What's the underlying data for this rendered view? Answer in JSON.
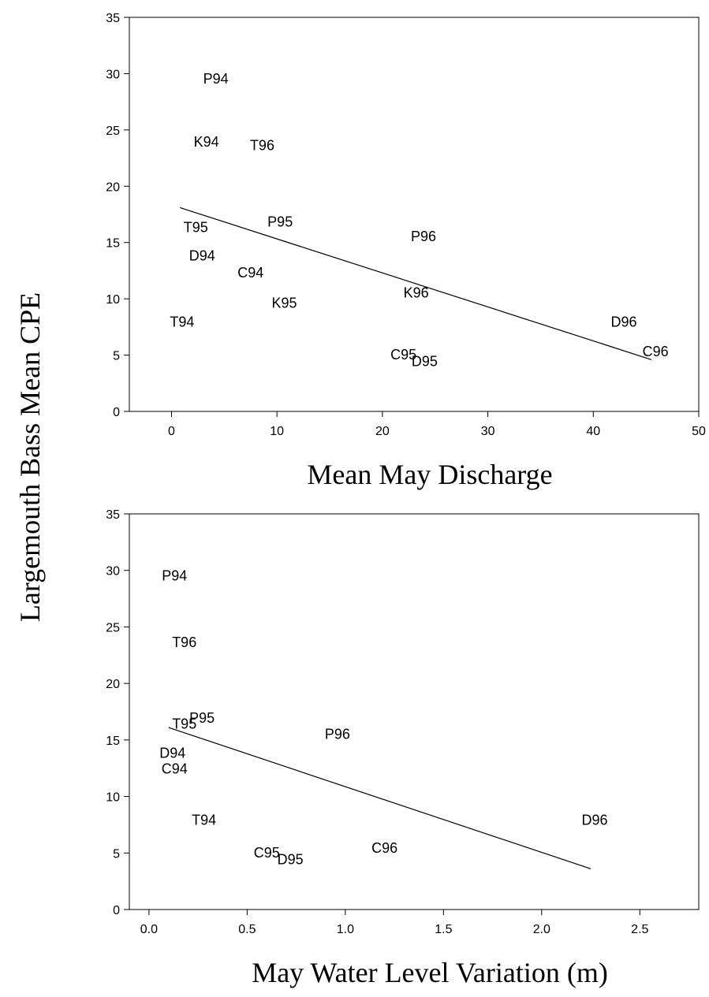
{
  "figure": {
    "ylabel": "Largemouth Bass Mean CPE"
  },
  "chart_data": [
    {
      "type": "scatter",
      "xlabel": "Mean May Discharge",
      "ylabel": "Largemouth Bass Mean CPE",
      "xlim": [
        -4,
        50
      ],
      "ylim": [
        0,
        35
      ],
      "xticks": [
        0,
        10,
        20,
        30,
        40,
        50
      ],
      "yticks": [
        0,
        5,
        10,
        15,
        20,
        25,
        30,
        35
      ],
      "xtick_decimals": 0,
      "grid": false,
      "points": [
        {
          "label": "P94",
          "x": 4.2,
          "y": 29.6
        },
        {
          "label": "K94",
          "x": 3.3,
          "y": 24.0
        },
        {
          "label": "T96",
          "x": 8.6,
          "y": 23.7
        },
        {
          "label": "T95",
          "x": 2.3,
          "y": 16.4
        },
        {
          "label": "P95",
          "x": 10.3,
          "y": 16.9
        },
        {
          "label": "P96",
          "x": 23.9,
          "y": 15.6
        },
        {
          "label": "D94",
          "x": 2.9,
          "y": 13.9
        },
        {
          "label": "C94",
          "x": 7.5,
          "y": 12.4
        },
        {
          "label": "K95",
          "x": 10.7,
          "y": 9.7
        },
        {
          "label": "K96",
          "x": 23.2,
          "y": 10.6
        },
        {
          "label": "T94",
          "x": 1.0,
          "y": 8.0
        },
        {
          "label": "C95",
          "x": 22.0,
          "y": 5.1
        },
        {
          "label": "D95",
          "x": 24.0,
          "y": 4.5
        },
        {
          "label": "D96",
          "x": 42.9,
          "y": 8.0
        },
        {
          "label": "C96",
          "x": 45.9,
          "y": 5.4
        }
      ],
      "regression": {
        "x": [
          0.8,
          45.5
        ],
        "y": [
          18.1,
          4.6
        ]
      }
    },
    {
      "type": "scatter",
      "xlabel": "May Water Level Variation (m)",
      "ylabel": "Largemouth Bass Mean CPE",
      "xlim": [
        -0.1,
        2.8
      ],
      "ylim": [
        0,
        35
      ],
      "xticks": [
        0.0,
        0.5,
        1.0,
        1.5,
        2.0,
        2.5
      ],
      "yticks": [
        0,
        5,
        10,
        15,
        20,
        25,
        30,
        35
      ],
      "xtick_decimals": 1,
      "grid": false,
      "points": [
        {
          "label": "P94",
          "x": 0.13,
          "y": 29.6
        },
        {
          "label": "T96",
          "x": 0.18,
          "y": 23.7
        },
        {
          "label": "T95",
          "x": 0.18,
          "y": 16.5
        },
        {
          "label": "P95",
          "x": 0.27,
          "y": 17.0
        },
        {
          "label": "P96",
          "x": 0.96,
          "y": 15.6
        },
        {
          "label": "D94",
          "x": 0.12,
          "y": 13.9
        },
        {
          "label": "C94",
          "x": 0.13,
          "y": 12.5
        },
        {
          "label": "T94",
          "x": 0.28,
          "y": 8.0
        },
        {
          "label": "C95",
          "x": 0.6,
          "y": 5.1
        },
        {
          "label": "D95",
          "x": 0.72,
          "y": 4.5
        },
        {
          "label": "C96",
          "x": 1.2,
          "y": 5.5
        },
        {
          "label": "D96",
          "x": 2.27,
          "y": 8.0
        }
      ],
      "regression": {
        "x": [
          0.1,
          2.25
        ],
        "y": [
          16.1,
          3.6
        ]
      }
    }
  ]
}
